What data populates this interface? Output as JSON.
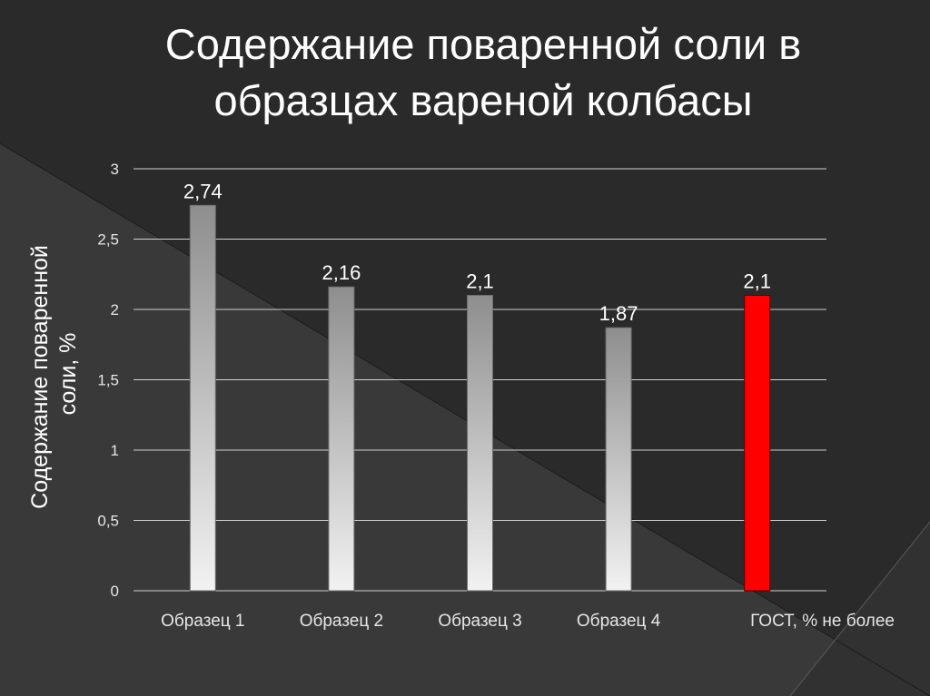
{
  "slide": {
    "title_line1": "Содержание поваренной соли в",
    "title_line2": "образцах вареной колбасы"
  },
  "chart_data": {
    "type": "bar",
    "categories": [
      "Образец 1",
      "Образец 2",
      "Образец 3",
      "Образец 4",
      "ГОСТ, % не более"
    ],
    "values": [
      2.74,
      2.16,
      2.1,
      1.87,
      2.1
    ],
    "data_labels": [
      "2,74",
      "2,16",
      "2,1",
      "1,87",
      "2,1"
    ],
    "ylabel_line1": "Содержание поваренной",
    "ylabel_line2": "соли, %",
    "ylim": [
      0,
      3
    ],
    "yticks": [
      0,
      0.5,
      1,
      1.5,
      2,
      2.5,
      3
    ],
    "ytick_labels": [
      "0",
      "0,5",
      "1",
      "1,5",
      "2",
      "2,5",
      "3"
    ],
    "grid": true,
    "highlight_index": 4,
    "colors": {
      "bar_top": "#8e8e8e",
      "bar_bottom": "#f2f2f2",
      "highlight": "#ff0000",
      "grid": "#d0d0d0"
    }
  }
}
